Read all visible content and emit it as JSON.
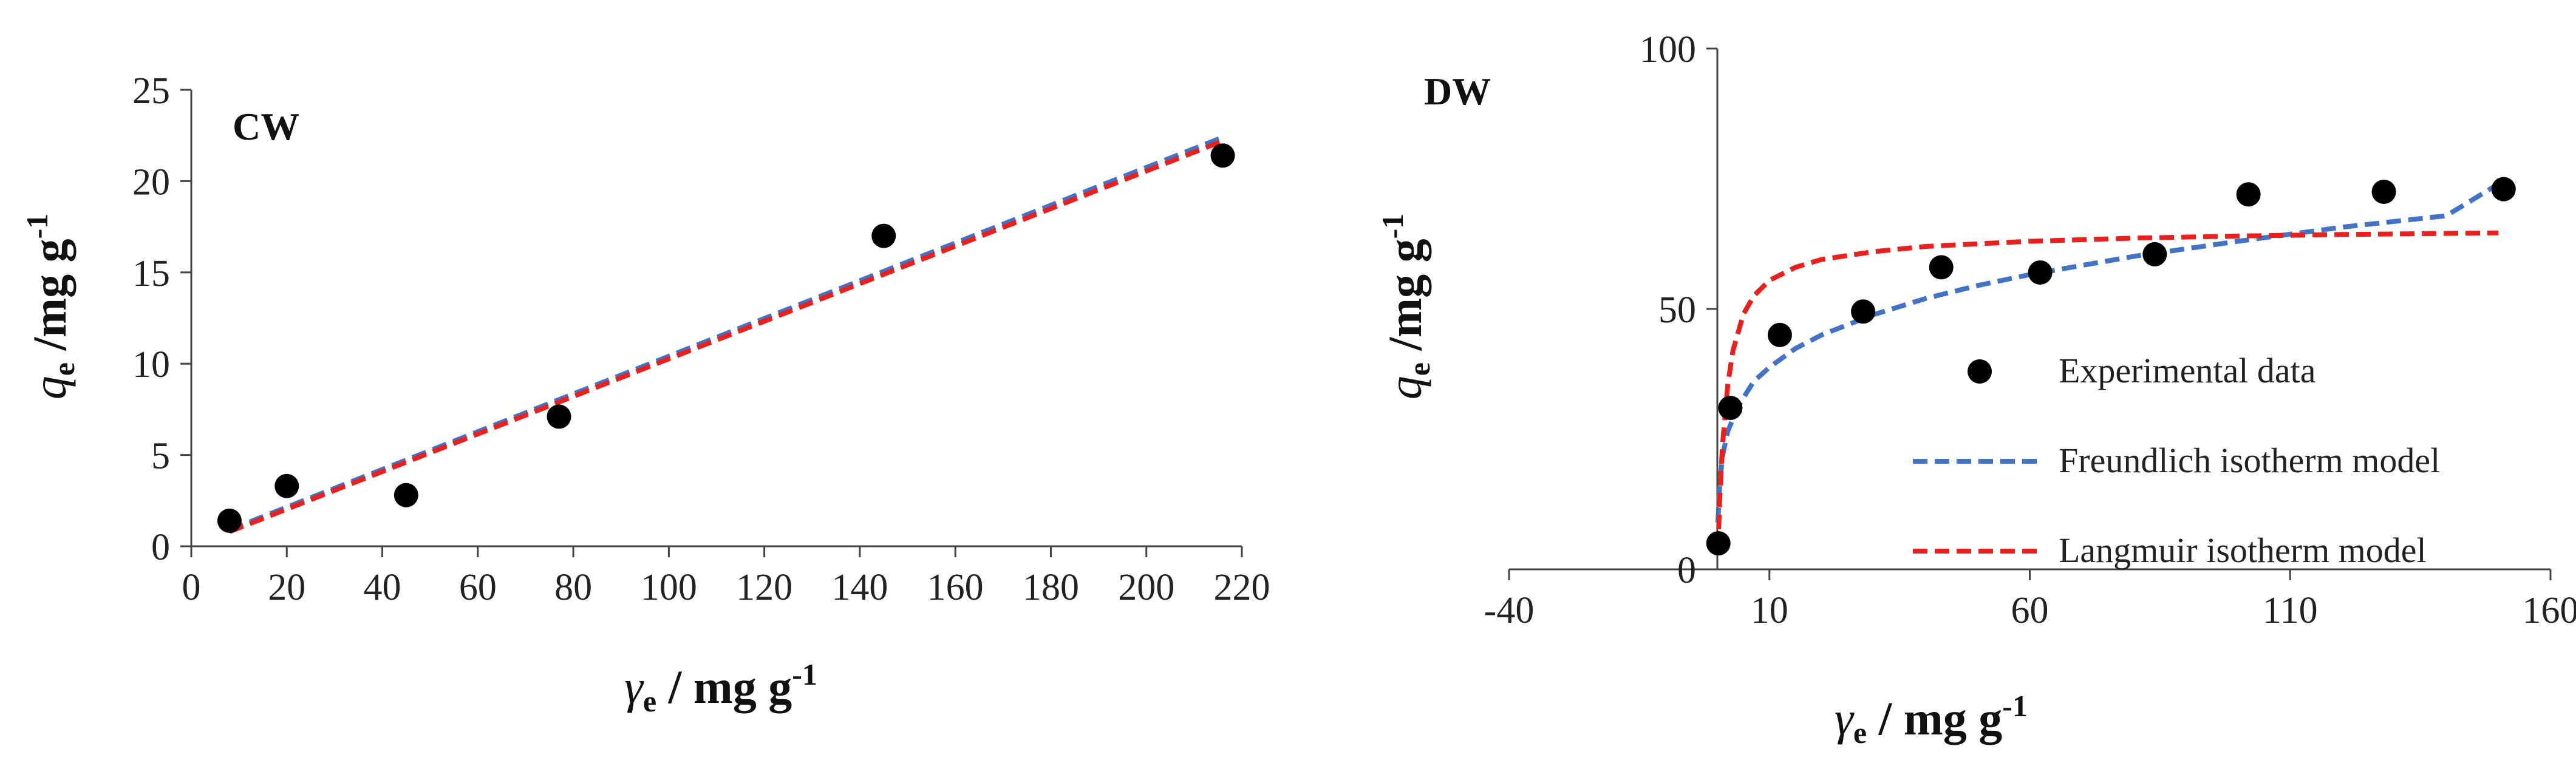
{
  "chart_data": [
    {
      "type": "scatter",
      "panel": "CW",
      "xlabel": {
        "sym": "γ",
        "sub": "e",
        "text": " / mg g",
        "sup": "-1"
      },
      "ylabel": {
        "sym": "q",
        "sub": "e",
        "text": " /mg g",
        "sup": "-1"
      },
      "xlim": [
        0,
        220
      ],
      "ylim": [
        0,
        25
      ],
      "xticks": [
        0,
        20,
        40,
        60,
        80,
        100,
        120,
        140,
        160,
        180,
        200,
        220
      ],
      "yticks": [
        0,
        5,
        10,
        15,
        20,
        25
      ],
      "grid": false,
      "series": [
        {
          "kind": "points",
          "color": "#000000",
          "x": [
            8,
            20,
            45,
            77,
            145,
            216
          ],
          "y": [
            1.4,
            3.3,
            2.8,
            7.1,
            17.0,
            21.4
          ]
        },
        {
          "kind": "line",
          "color": "#4472C4",
          "dash": true,
          "x": [
            8,
            216
          ],
          "y": [
            0.9,
            22.4
          ]
        },
        {
          "kind": "line",
          "color": "#E8201E",
          "dash": true,
          "x": [
            8,
            216
          ],
          "y": [
            0.8,
            22.2
          ]
        }
      ]
    },
    {
      "type": "scatter",
      "panel": "DW",
      "xlabel": {
        "sym": "γ",
        "sub": "e",
        "text": " / mg g",
        "sup": "-1"
      },
      "ylabel": {
        "sym": "q",
        "sub": "e",
        "text": " /mg g",
        "sup": "-1"
      },
      "xlim": [
        -40,
        160
      ],
      "ylim": [
        0,
        100
      ],
      "xticks": [
        -40,
        10,
        60,
        110,
        160
      ],
      "yticks": [
        0,
        50,
        100
      ],
      "grid": false,
      "legend": {
        "placement": "right",
        "entries": [
          {
            "label": "Experimental data",
            "kind": "marker",
            "color": "#000000"
          },
          {
            "label": "Freundlich isotherm model",
            "kind": "dash",
            "color": "#4472C4"
          },
          {
            "label": "Langmuir isotherm model",
            "kind": "dash",
            "color": "#E8201E"
          }
        ]
      },
      "series": [
        {
          "kind": "points",
          "name": "Experimental data",
          "color": "#000000",
          "x": [
            0.2,
            2.5,
            12,
            28,
            43,
            62,
            84,
            102,
            128,
            151
          ],
          "y": [
            5,
            31,
            45,
            49.5,
            58,
            57,
            60.5,
            72,
            72.5,
            73
          ]
        },
        {
          "kind": "line",
          "name": "Freundlich isotherm model",
          "color": "#4472C4",
          "dash": true,
          "x": [
            0.1,
            0.5,
            1,
            2,
            4,
            7,
            10,
            15,
            20,
            30,
            40,
            50,
            60,
            80,
            100,
            120,
            140,
            150
          ],
          "y": [
            9.0,
            17.0,
            21.8,
            26.5,
            31.3,
            36.1,
            38.8,
            42.4,
            45.0,
            48.9,
            52.0,
            54.5,
            56.6,
            60.1,
            63.0,
            65.7,
            67.9,
            74.0
          ]
        },
        {
          "kind": "line",
          "name": "Langmuir isotherm model",
          "color": "#E8201E",
          "dash": true,
          "x": [
            0.1,
            0.5,
            1,
            2,
            3,
            5,
            7,
            10,
            15,
            20,
            30,
            40,
            60,
            80,
            100,
            120,
            150
          ],
          "y": [
            3.5,
            14.5,
            24.0,
            35.5,
            42.0,
            49.0,
            52.5,
            55.5,
            58.0,
            59.5,
            61.0,
            62.0,
            63.0,
            63.6,
            64.0,
            64.3,
            64.6
          ]
        }
      ]
    }
  ]
}
